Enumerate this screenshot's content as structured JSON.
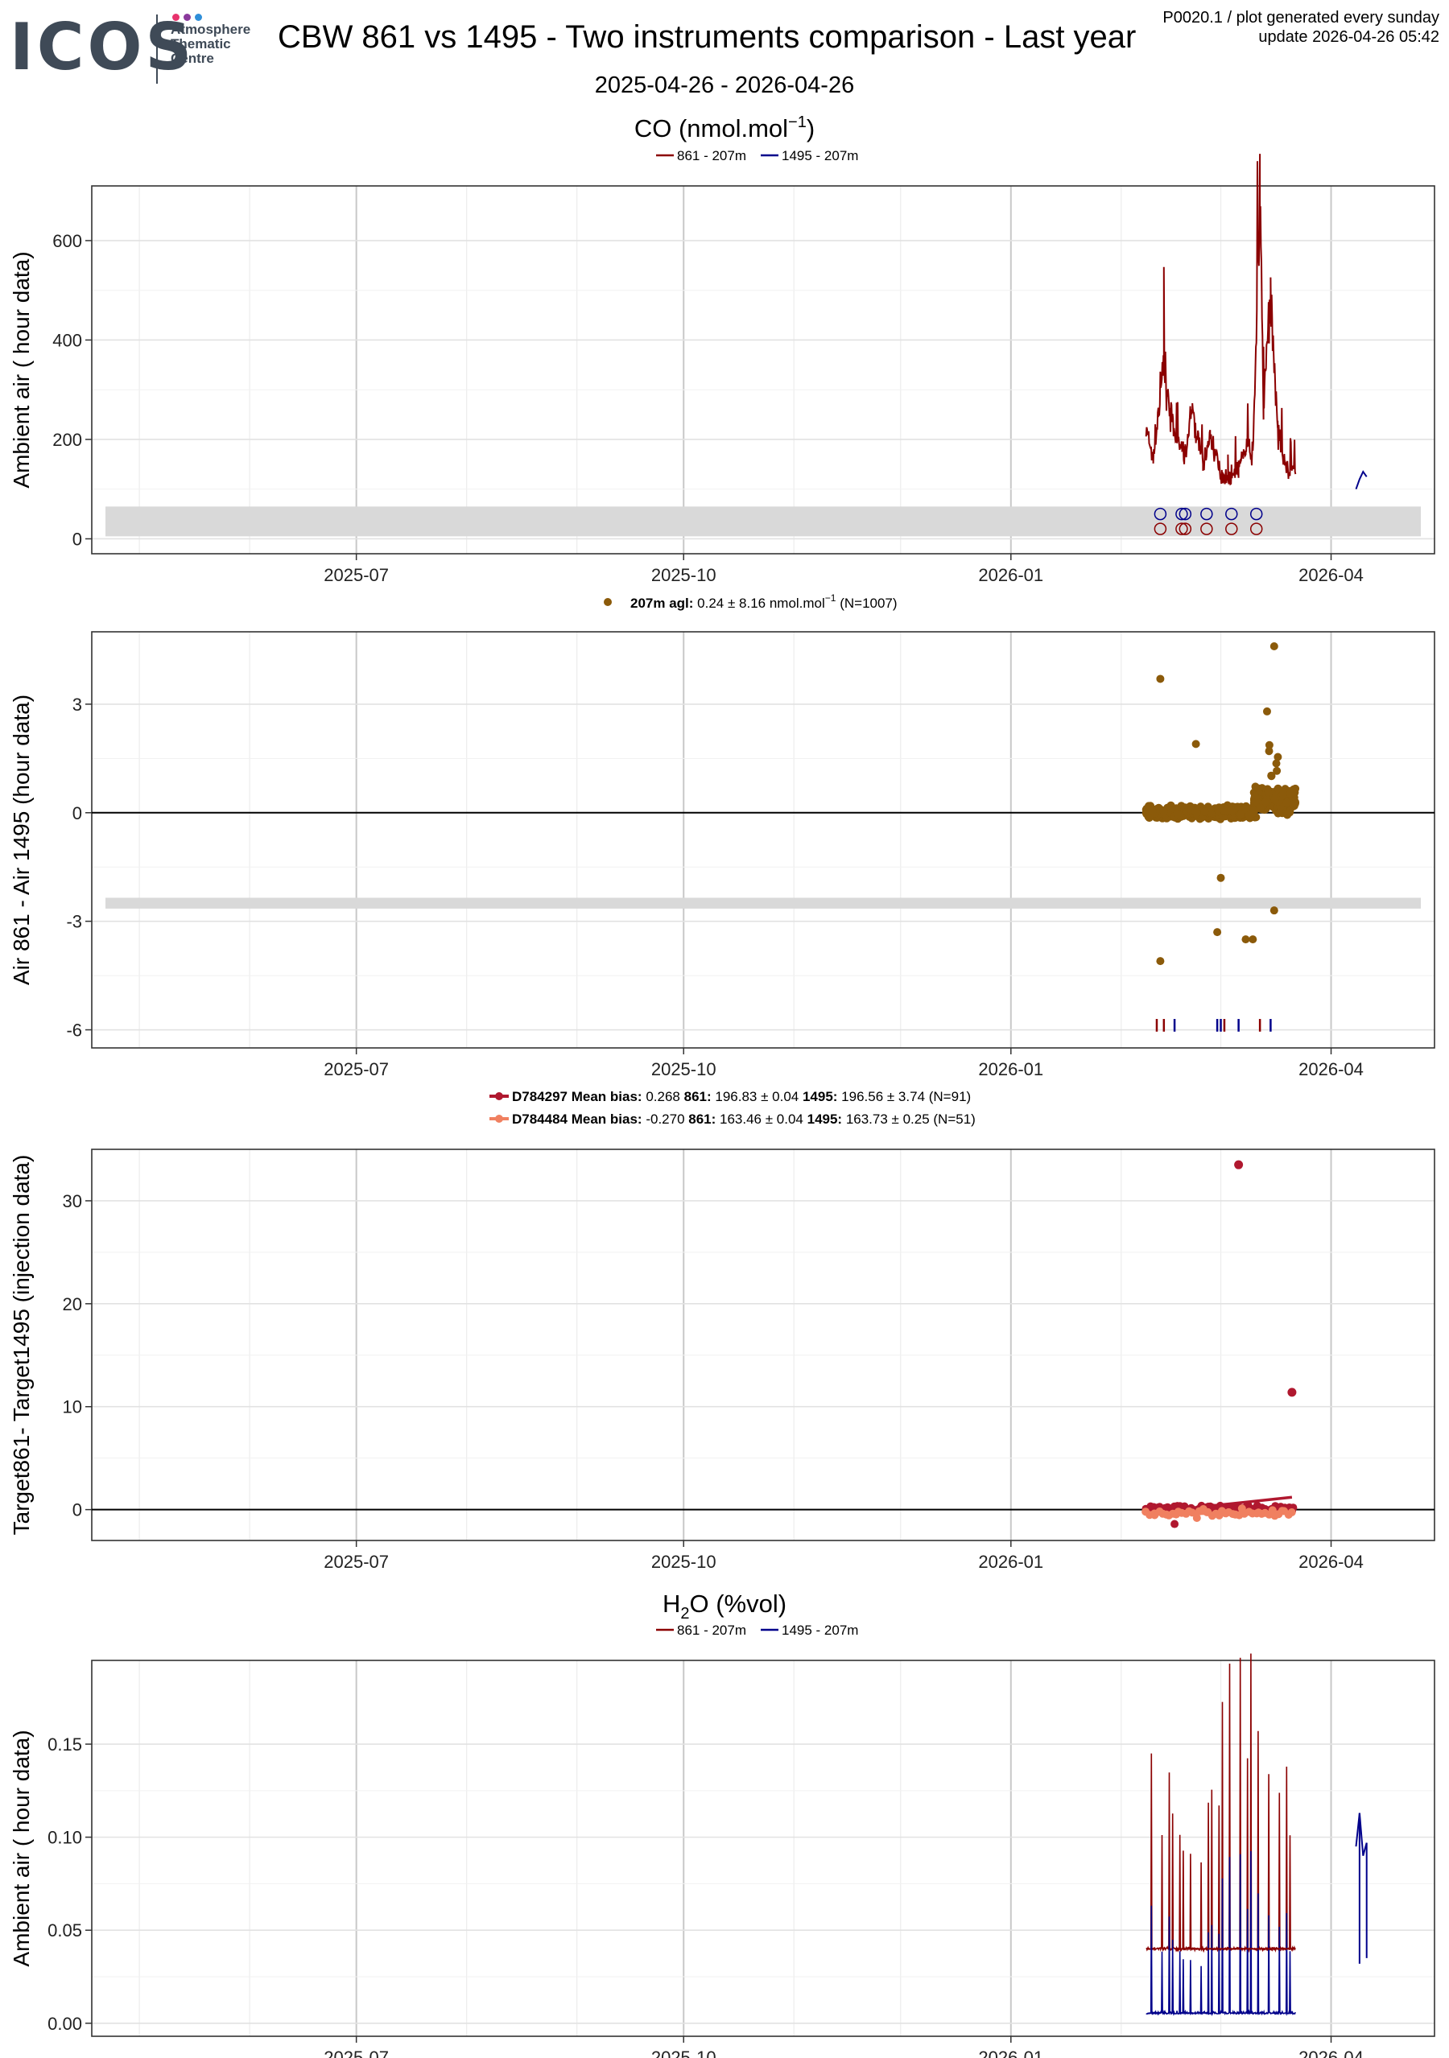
{
  "header": {
    "logo_text": "ICOS",
    "logo_sub": [
      "Atmosphere",
      "Thematic",
      "Centre"
    ],
    "logo_dot_colors": [
      "#e8336d",
      "#8a3a9c",
      "#2f8fd9"
    ],
    "title": "CBW 861 vs 1495 - Two instruments comparison - Last year",
    "corner_line1": "P0020.1 / plot generated every sunday",
    "corner_line2": "update  2026-04-26 05:42",
    "date_range": "2025-04-26 - 2026-04-26"
  },
  "colors": {
    "inst861": "#8b0000",
    "inst1495": "#00008b",
    "diff": "#8b5a0a",
    "target1": "#b0182f",
    "target2": "#f08060",
    "band": "#d9d9d9"
  },
  "x_axis": {
    "ticks": [
      "2025-07",
      "2025-10",
      "2026-01",
      "2026-04"
    ],
    "range": [
      "2025-04-26",
      "2026-04-26"
    ]
  },
  "sections": {
    "co": {
      "title_main": "CO (nmol.mol",
      "title_sup": "−1",
      "title_end": ")"
    },
    "h2o": {
      "title_main": "H",
      "title_sub": "2",
      "title_end": "O (%vol)"
    }
  },
  "chart_data": [
    {
      "type": "line",
      "title": "CO (nmol.mol−1)",
      "ylabel": "Ambient air ( hour data)",
      "ylim": [
        -30,
        710
      ],
      "yticks": [
        0,
        200,
        400,
        600
      ],
      "legend": [
        "861 - 207m",
        "1495 - 207m"
      ],
      "legend_position": "top-center",
      "grid": true,
      "series": [
        {
          "name": "861 - 207m",
          "x": [
            "2026-02-08",
            "2026-02-10",
            "2026-02-13",
            "2026-02-16",
            "2026-02-19",
            "2026-02-21",
            "2026-02-24",
            "2026-02-26",
            "2026-03-01",
            "2026-03-03",
            "2026-03-06",
            "2026-03-08",
            "2026-03-10",
            "2026-03-12",
            "2026-03-13",
            "2026-03-15",
            "2026-03-17",
            "2026-03-19",
            "2026-03-20",
            "2026-03-22"
          ],
          "y": [
            220,
            160,
            350,
            200,
            170,
            260,
            145,
            210,
            130,
            120,
            140,
            185,
            170,
            680,
            260,
            500,
            215,
            160,
            130,
            140
          ]
        },
        {
          "name": "1495 - 207m",
          "x": [
            "2026-04-08",
            "2026-04-09",
            "2026-04-10",
            "2026-04-11"
          ],
          "y": [
            100,
            120,
            135,
            125
          ]
        }
      ],
      "flag_band": [
        5,
        65
      ],
      "markers": {
        "x": [
          "2026-02-12",
          "2026-02-18",
          "2026-02-19",
          "2026-02-25",
          "2026-03-04",
          "2026-03-11"
        ],
        "y_861": 20,
        "y_1495": 50
      }
    },
    {
      "type": "scatter",
      "ylabel": "Air 861 - Air 1495 (hour data)",
      "ylim": [
        -6.5,
        5.0
      ],
      "yticks": [
        -6,
        -3,
        0,
        3
      ],
      "legend_series": "207m agl:",
      "legend_stats": "0.24 ± 8.16 nmol.mol",
      "legend_sup": "−1",
      "legend_n": "(N=1007)",
      "grid": true,
      "outliers": [
        {
          "x": "2026-02-12",
          "y": 3.7
        },
        {
          "x": "2026-02-12",
          "y": -4.1
        },
        {
          "x": "2026-02-22",
          "y": 1.9
        },
        {
          "x": "2026-03-01",
          "y": -1.8
        },
        {
          "x": "2026-02-28",
          "y": -3.3
        },
        {
          "x": "2026-03-08",
          "y": -3.5
        },
        {
          "x": "2026-03-10",
          "y": -3.5
        },
        {
          "x": "2026-03-14",
          "y": 2.8
        },
        {
          "x": "2026-03-16",
          "y": 4.6
        },
        {
          "x": "2026-03-16",
          "y": -2.7
        }
      ],
      "flag_band": [
        -2.65,
        -2.35
      ],
      "flag_ticks_861": [
        "2026-02-11",
        "2026-02-13",
        "2026-03-02",
        "2026-03-12"
      ],
      "flag_ticks_1495": [
        "2026-02-16",
        "2026-02-28",
        "2026-03-01",
        "2026-03-06",
        "2026-03-15"
      ]
    },
    {
      "type": "scatter",
      "ylabel": "Target861- Target1495 (injection data)",
      "ylim": [
        -3,
        35
      ],
      "yticks": [
        0,
        10,
        20,
        30
      ],
      "grid": true,
      "series": [
        {
          "name": "D784297",
          "mean_bias": "0.268",
          "v861": "196.83 ± 0.04",
          "v1495": "196.56 ± 3.74",
          "n": "(N=91)",
          "outliers": [
            {
              "x": "2026-03-06",
              "y": 33.5
            },
            {
              "x": "2026-03-21",
              "y": 11.4
            }
          ],
          "trend": {
            "x": [
              "2026-02-08",
              "2026-03-21"
            ],
            "y": [
              -0.3,
              1.2
            ]
          }
        },
        {
          "name": "D784484",
          "mean_bias": "-0.270",
          "v861": "163.46 ± 0.04",
          "v1495": "163.73 ± 0.25",
          "n": "(N=51)",
          "trend": {
            "x": [
              "2026-02-08",
              "2026-03-21"
            ],
            "y": [
              -0.5,
              -0.2
            ]
          }
        }
      ],
      "legend_labels": {
        "mean": "Mean bias:",
        "a": "861:",
        "b": "1495:"
      }
    },
    {
      "type": "line",
      "title": "H2O (%vol)",
      "ylabel": "Ambient air ( hour data)",
      "ylim": [
        -0.007,
        0.195
      ],
      "yticks": [
        0.0,
        0.05,
        0.1,
        0.15
      ],
      "ytick_labels": [
        "0.00",
        "0.05",
        "0.10",
        "0.15"
      ],
      "legend": [
        "861 - 207m",
        "1495 - 207m"
      ],
      "legend_position": "top-center",
      "grid": true,
      "baseline_861": 0.04,
      "baseline_1495": 0.005,
      "series_1495_recent": {
        "x": [
          "2026-04-08",
          "2026-04-09",
          "2026-04-10",
          "2026-04-11"
        ],
        "y": [
          0.095,
          0.113,
          0.09,
          0.097
        ]
      }
    }
  ]
}
